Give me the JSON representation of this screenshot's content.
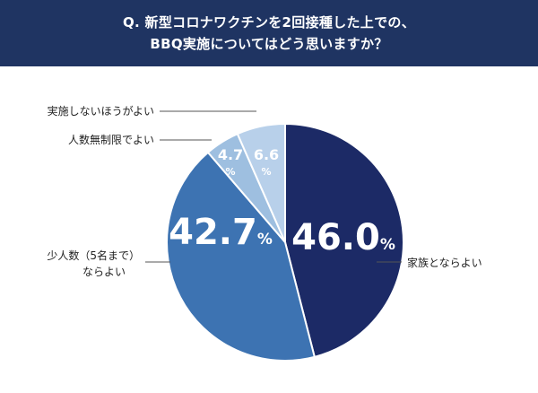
{
  "header": {
    "title_line1": "Q. 新型コロナワクチンを2回接種した上での、",
    "title_line2": "BBQ実施についてはどう思いますか？"
  },
  "chart_data": {
    "type": "pie",
    "title": "Q. 新型コロナワクチンを2回接種した上での、BBQ実施についてはどう思いますか？",
    "slices": [
      {
        "label": "家族とならよい",
        "value": 46.0,
        "value_text": "46.0",
        "color": "#1c2a66"
      },
      {
        "label": "少人数（5名まで）ならよい",
        "value": 42.7,
        "value_text": "42.7",
        "color": "#3d73b2"
      },
      {
        "label": "人数無制限でよい",
        "value": 4.7,
        "value_text": "4.7",
        "color": "#9ebfe0"
      },
      {
        "label": "実施しないほうがよい",
        "value": 6.6,
        "value_text": "6.6",
        "color": "#b8d0ea"
      }
    ],
    "unit": "%"
  }
}
